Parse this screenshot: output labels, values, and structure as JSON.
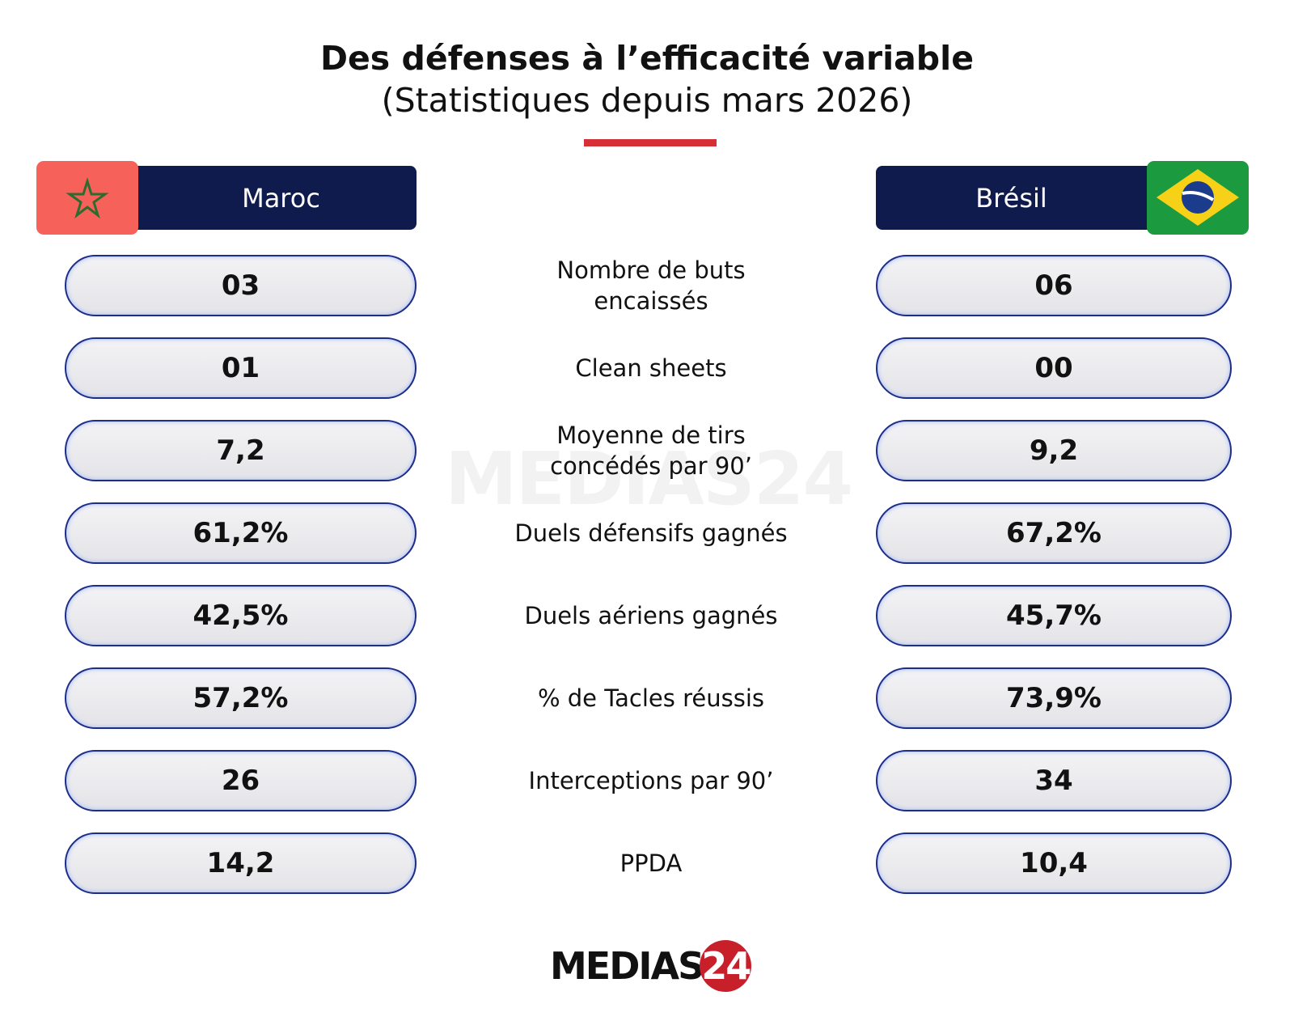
{
  "header": {
    "title": "Des défenses à l’efficacité variable",
    "subtitle": "(Statistiques depuis mars 2026)"
  },
  "teams": [
    "Maroc",
    "Brésil"
  ],
  "rows": [
    {
      "label": "Nombre de buts encaissés",
      "values": [
        "03",
        "06"
      ]
    },
    {
      "label": "Clean sheets",
      "values": [
        "01",
        "00"
      ]
    },
    {
      "label": "Moyenne de tirs concédés par 90’",
      "values": [
        "7,2",
        "9,2"
      ]
    },
    {
      "label": "Duels défensifs gagnés",
      "values": [
        "61,2%",
        "67,2%"
      ]
    },
    {
      "label": "Duels aériens gagnés",
      "values": [
        "42,5%",
        "45,7%"
      ]
    },
    {
      "label": "% de Tacles réussis",
      "values": [
        "57,2%",
        "73,9%"
      ]
    },
    {
      "label": "Interceptions par 90’",
      "values": [
        "26",
        "34"
      ]
    },
    {
      "label": "PPDA",
      "values": [
        "14,2",
        "10,4"
      ]
    }
  ],
  "footer": {
    "logo_text": "MEDIAS",
    "logo_badge": "24"
  }
}
